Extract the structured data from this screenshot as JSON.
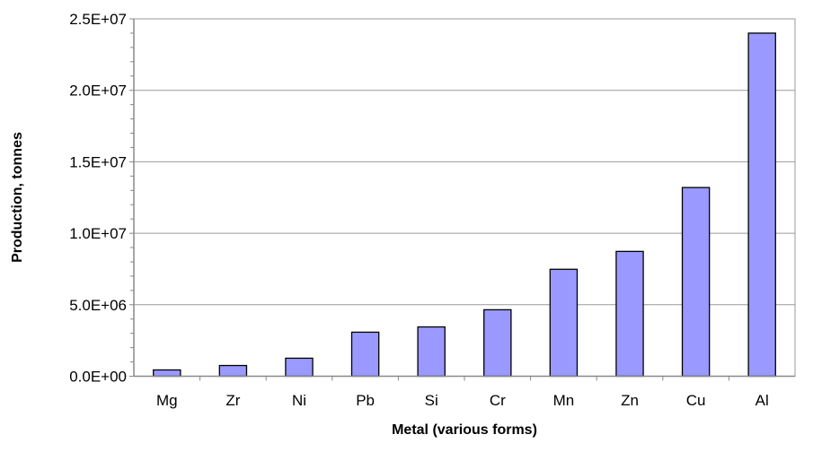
{
  "chart_data": {
    "type": "bar",
    "title": "",
    "xlabel": "Metal (various forms)",
    "ylabel": "Production, tonnes",
    "categories": [
      "Mg",
      "Zr",
      "Ni",
      "Pb",
      "Si",
      "Cr",
      "Mn",
      "Zn",
      "Cu",
      "Al"
    ],
    "values": [
      440000,
      750000,
      1260000,
      3080000,
      3450000,
      4650000,
      7480000,
      8730000,
      13200000,
      24000000
    ],
    "ylim": [
      0,
      25000000
    ],
    "yticks": [
      0,
      5000000,
      10000000,
      15000000,
      20000000,
      25000000
    ],
    "ytick_labels": [
      "0.0E+00",
      "5.0E+06",
      "1.0E+07",
      "1.5E+07",
      "2.0E+07",
      "2.5E+07"
    ],
    "grid": true,
    "bar_color": "#9999ff",
    "legend": "none"
  }
}
